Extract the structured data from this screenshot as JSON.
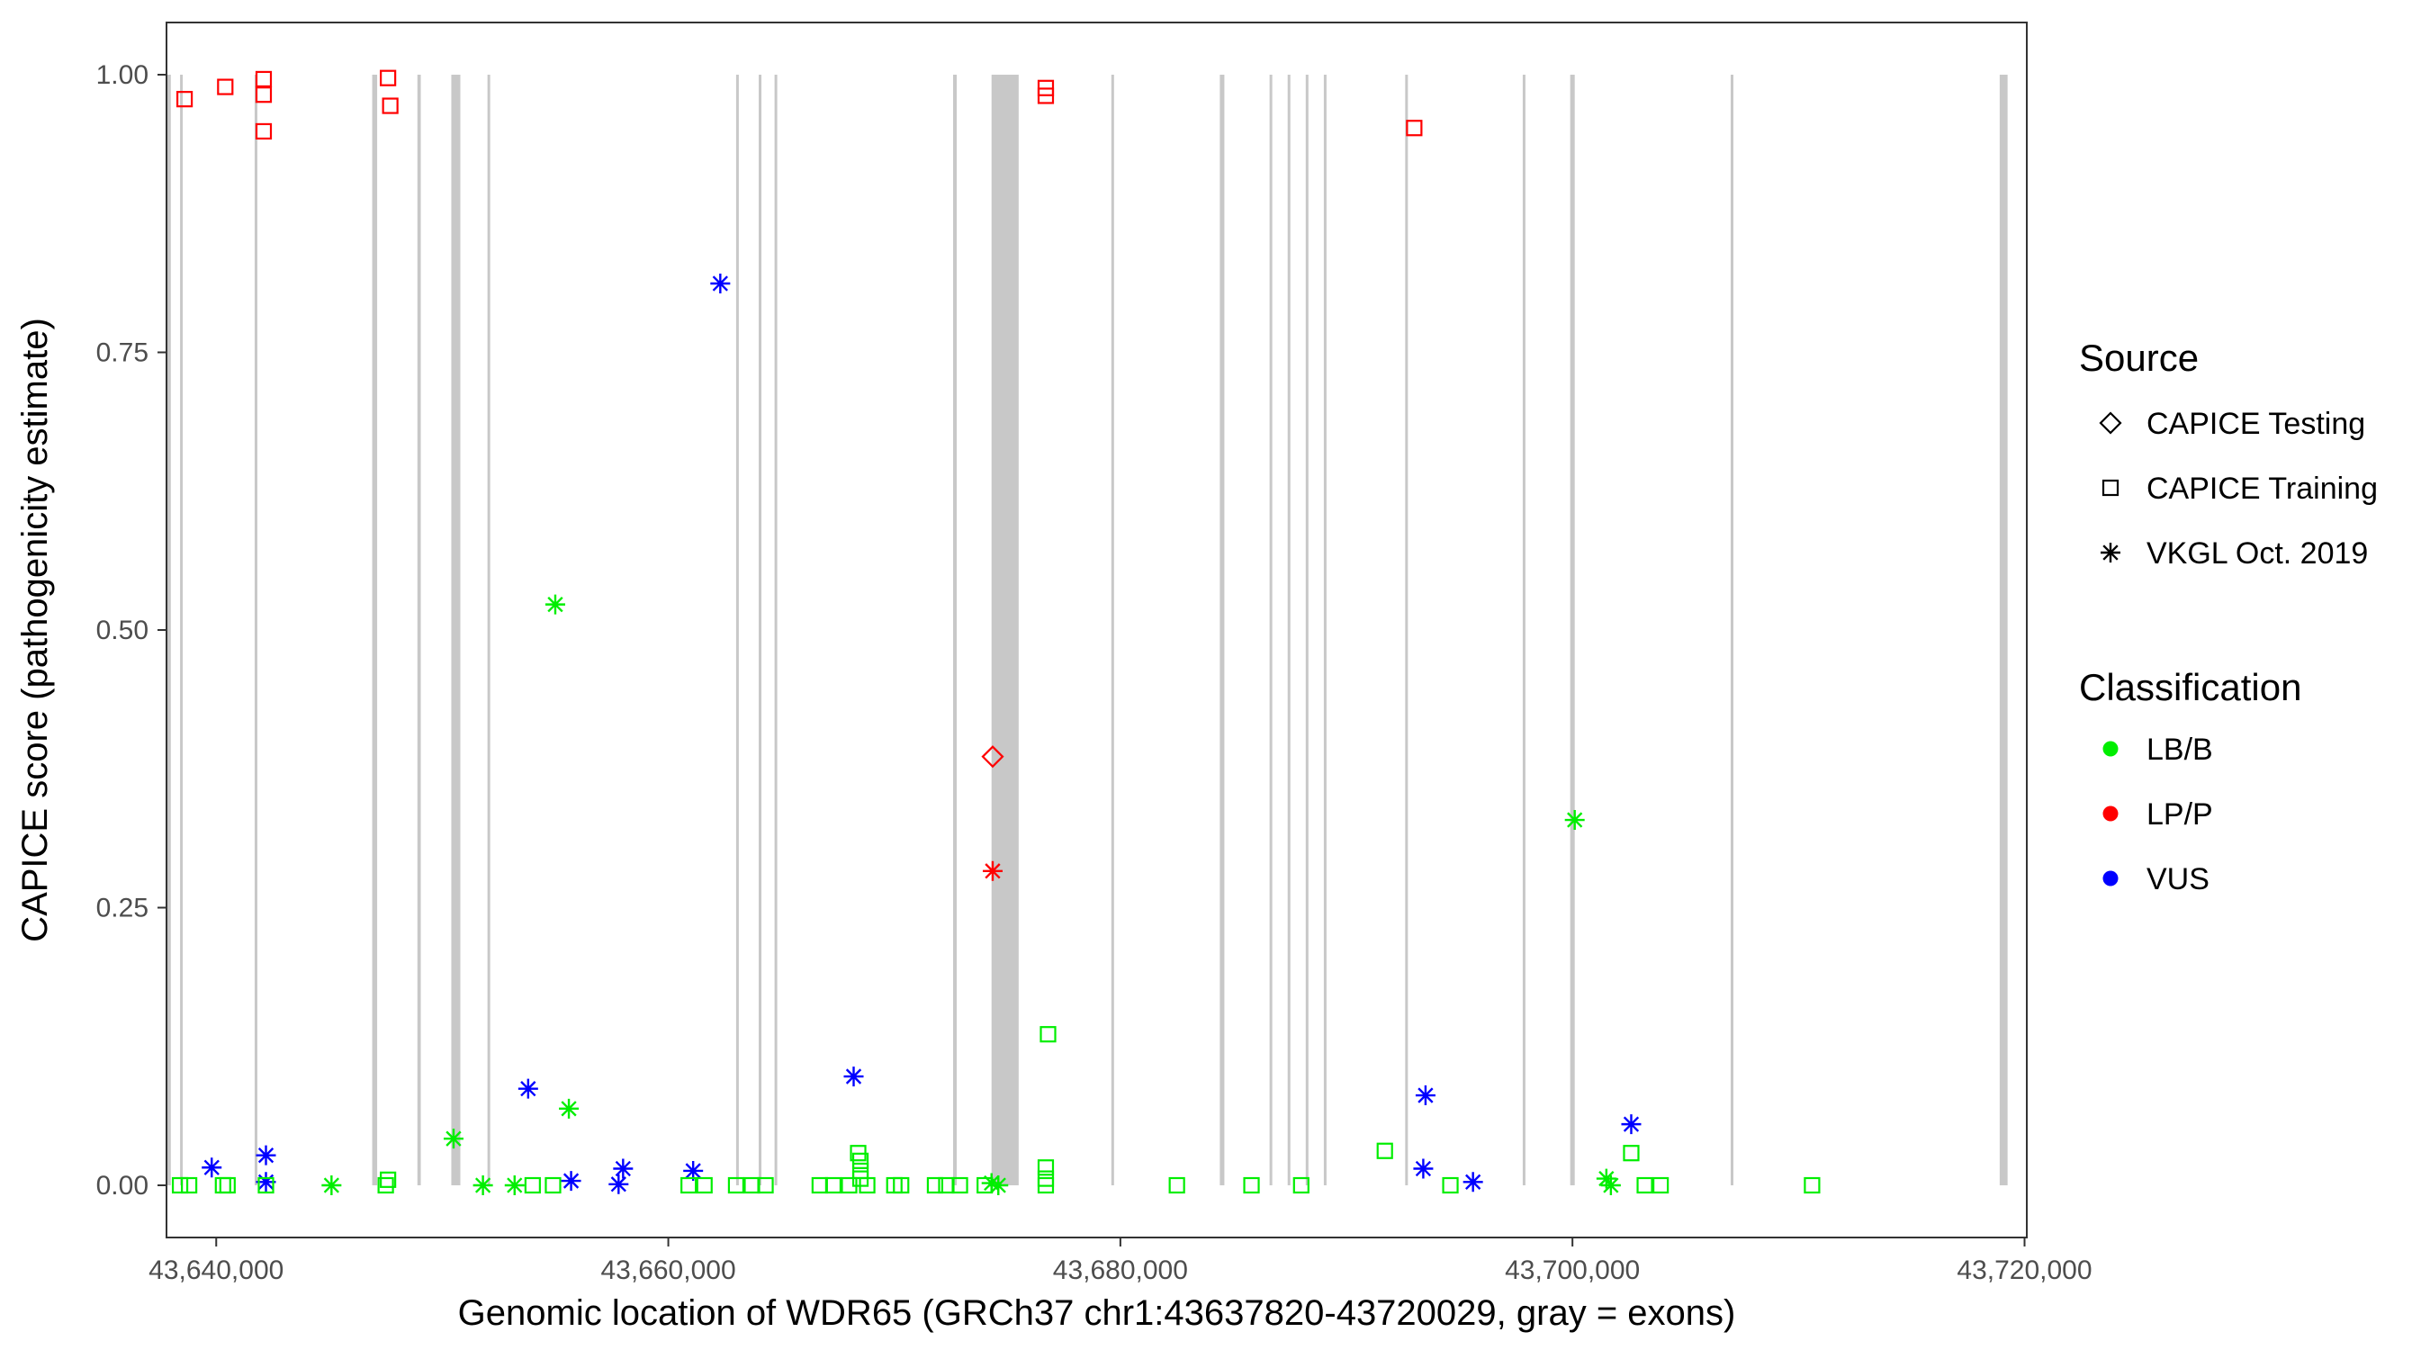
{
  "chart_data": {
    "type": "scatter",
    "xlabel": "Genomic location of WDR65 (GRCh37 chr1:43637820-43720029, gray = exons)",
    "ylabel": "CAPICE score (pathogenicity estimate)",
    "xlim": [
      43637800,
      43720100
    ],
    "ylim": [
      -0.047,
      1.047
    ],
    "x_ticks": [
      43640000,
      43660000,
      43680000,
      43700000,
      43720000
    ],
    "x_tick_labels": [
      "43,640,000",
      "43,660,000",
      "43,680,000",
      "43,700,000",
      "43,720,000"
    ],
    "y_ticks": [
      0,
      0.25,
      0.5,
      0.75,
      1
    ],
    "y_tick_labels": [
      "0.00",
      "0.25",
      "0.50",
      "0.75",
      "1.00"
    ],
    "grid": false,
    "exons": [
      [
        43637820,
        43637990
      ],
      [
        43638400,
        43638500
      ],
      [
        43641700,
        43641800
      ],
      [
        43646900,
        43647120
      ],
      [
        43648900,
        43649050
      ],
      [
        43650400,
        43650800
      ],
      [
        43652000,
        43652100
      ],
      [
        43663000,
        43663080
      ],
      [
        43664000,
        43664080
      ],
      [
        43664700,
        43664780
      ],
      [
        43672600,
        43672760
      ],
      [
        43674300,
        43675500
      ],
      [
        43679600,
        43679700
      ],
      [
        43684400,
        43684600
      ],
      [
        43686600,
        43686700
      ],
      [
        43687400,
        43687500
      ],
      [
        43688200,
        43688300
      ],
      [
        43689000,
        43689100
      ],
      [
        43692600,
        43692700
      ],
      [
        43697800,
        43697900
      ],
      [
        43699900,
        43700100
      ],
      [
        43707000,
        43707100
      ],
      [
        43718900,
        43719250
      ]
    ],
    "legend": {
      "placement": "right",
      "source_title": "Source",
      "source_items": [
        {
          "label": "CAPICE Testing",
          "shape": "diamond"
        },
        {
          "label": "CAPICE Training",
          "shape": "square"
        },
        {
          "label": "VKGL Oct. 2019",
          "shape": "asterisk"
        }
      ],
      "class_title": "Classification",
      "class_items": [
        {
          "label": "LB/B",
          "color": "#00ee00"
        },
        {
          "label": "LP/P",
          "color": "#ff0000"
        },
        {
          "label": "VUS",
          "color": "#0000ff"
        }
      ]
    },
    "colors": {
      "LB/B": "#00ee00",
      "LP/P": "#ff0000",
      "VUS": "#0000ff",
      "exon": "#c8c8c8"
    },
    "series": [
      {
        "source": "CAPICE Training",
        "classification": "LP/P",
        "points": [
          [
            43638600,
            0.978
          ],
          [
            43640400,
            0.989
          ],
          [
            43642100,
            0.996
          ],
          [
            43642100,
            0.982
          ],
          [
            43642100,
            0.949
          ],
          [
            43647600,
            0.997
          ],
          [
            43647700,
            0.972
          ],
          [
            43676700,
            0.988
          ],
          [
            43676700,
            0.981
          ],
          [
            43693000,
            0.952
          ]
        ]
      },
      {
        "source": "CAPICE Testing",
        "classification": "LP/P",
        "points": [
          [
            43674350,
            0.386
          ]
        ]
      },
      {
        "source": "VKGL Oct. 2019",
        "classification": "LP/P",
        "points": [
          [
            43674350,
            0.283
          ]
        ]
      },
      {
        "source": "VKGL Oct. 2019",
        "classification": "VUS",
        "points": [
          [
            43662300,
            0.812
          ],
          [
            43668200,
            0.098
          ],
          [
            43653800,
            0.087
          ],
          [
            43693500,
            0.081
          ],
          [
            43702600,
            0.055
          ],
          [
            43639800,
            0.016
          ],
          [
            43642200,
            0.027
          ],
          [
            43642200,
            0.003
          ],
          [
            43655700,
            0.004
          ],
          [
            43657800,
            0.001
          ],
          [
            43658000,
            0.015
          ],
          [
            43661100,
            0.013
          ],
          [
            43693400,
            0.015
          ],
          [
            43695600,
            0.003
          ]
        ]
      },
      {
        "source": "VKGL Oct. 2019",
        "classification": "LB/B",
        "points": [
          [
            43655000,
            0.523
          ],
          [
            43700100,
            0.329
          ],
          [
            43655600,
            0.069
          ],
          [
            43650500,
            0.042
          ],
          [
            43645100,
            0.0
          ],
          [
            43651800,
            0.0
          ],
          [
            43653200,
            0.0
          ],
          [
            43674300,
            0.002
          ],
          [
            43674600,
            0.0
          ],
          [
            43701500,
            0.006
          ],
          [
            43701700,
            0.0
          ]
        ]
      },
      {
        "source": "CAPICE Training",
        "classification": "LB/B",
        "points": [
          [
            43676800,
            0.136
          ],
          [
            43691700,
            0.031
          ],
          [
            43702600,
            0.029
          ],
          [
            43668400,
            0.029
          ],
          [
            43668500,
            0.022
          ],
          [
            43668500,
            0.013
          ],
          [
            43668500,
            0.006
          ],
          [
            43676700,
            0.016
          ],
          [
            43676700,
            0.006
          ],
          [
            43647600,
            0.005
          ],
          [
            43638400,
            0.0
          ],
          [
            43638800,
            0.0
          ],
          [
            43640300,
            0.0
          ],
          [
            43640500,
            0.0
          ],
          [
            43642200,
            0.0
          ],
          [
            43647500,
            0.0
          ],
          [
            43654000,
            0.0
          ],
          [
            43654900,
            0.0
          ],
          [
            43660900,
            0.0
          ],
          [
            43661600,
            0.0
          ],
          [
            43663000,
            0.0
          ],
          [
            43663700,
            0.0
          ],
          [
            43664300,
            0.0
          ],
          [
            43666700,
            0.0
          ],
          [
            43667300,
            0.0
          ],
          [
            43668000,
            0.0
          ],
          [
            43668800,
            0.0
          ],
          [
            43670000,
            0.0
          ],
          [
            43670300,
            0.0
          ],
          [
            43671800,
            0.0
          ],
          [
            43672300,
            0.0
          ],
          [
            43672900,
            0.0
          ],
          [
            43674000,
            0.0
          ],
          [
            43676700,
            0.0
          ],
          [
            43682500,
            0.0
          ],
          [
            43685800,
            0.0
          ],
          [
            43688000,
            0.0
          ],
          [
            43694600,
            0.0
          ],
          [
            43703200,
            0.0
          ],
          [
            43703900,
            0.0
          ],
          [
            43710600,
            0.0
          ]
        ]
      }
    ]
  }
}
